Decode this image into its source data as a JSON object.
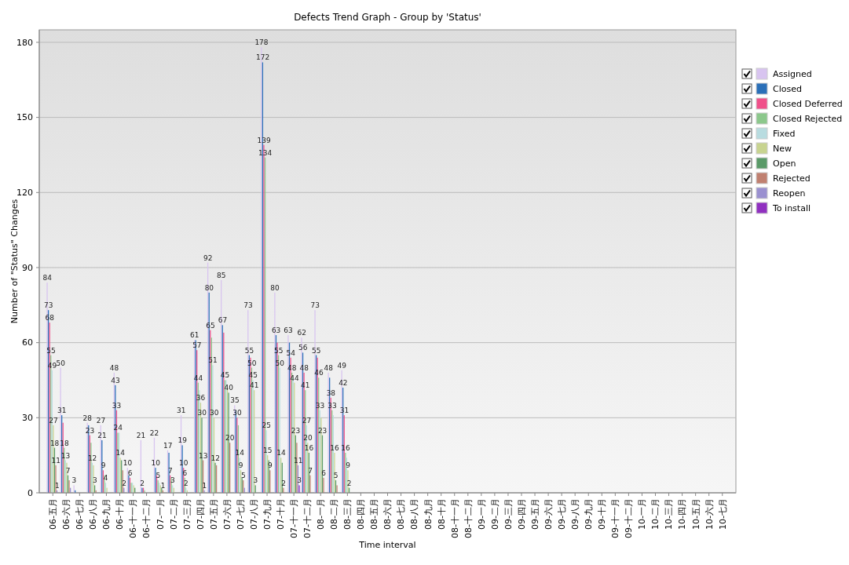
{
  "chart_data": {
    "type": "bar",
    "title": "Defects Trend Graph - Group by 'Status'",
    "xlabel": "Time interval",
    "ylabel": "Number of \"Status\" Changes",
    "categories": [
      "06-五月",
      "06-六月",
      "06-七月",
      "06-八月",
      "06-九月",
      "06-十月",
      "06-十一月",
      "06-十二月",
      "07-一月",
      "07-二月",
      "07-三月",
      "07-四月",
      "07-五月",
      "07-六月",
      "07-七月",
      "07-八月",
      "07-九月",
      "07-十月",
      "07-十一月",
      "07-十二月",
      "08-一月",
      "08-二月",
      "08-三月",
      "08-四月",
      "08-五月",
      "08-六月",
      "08-七月",
      "08-八月",
      "08-九月",
      "08-十月",
      "08-十一月",
      "08-十二月",
      "09-一月",
      "09-二月",
      "09-三月",
      "09-四月",
      "09-五月",
      "09-六月",
      "09-七月",
      "09-八月",
      "09-九月",
      "09-十月",
      "09-十一月",
      "09-十二月",
      "10-一月",
      "10-二月",
      "10-三月",
      "10-四月",
      "10-五月",
      "10-六月",
      "10-七月"
    ],
    "series": [
      {
        "name": "Assigned",
        "color": "#d8c4f0",
        "values": [
          84,
          50,
          3,
          28,
          27,
          48,
          10,
          21,
          22,
          17,
          31,
          61,
          92,
          85,
          35,
          73,
          178,
          80,
          63,
          62,
          73,
          48,
          49,
          null,
          null,
          null,
          null,
          null,
          null,
          null,
          null,
          null,
          null,
          null,
          null,
          null,
          null,
          null,
          null,
          null,
          null,
          null,
          null,
          null,
          null,
          null,
          null,
          null,
          null,
          null,
          null
        ],
        "value_labels": [
          "84",
          "50",
          "3",
          "28",
          "27",
          "48",
          "10",
          "21",
          "22",
          "17",
          "31",
          "61",
          "92",
          "85",
          "35",
          "73",
          "178",
          "80",
          "63",
          "62",
          "73",
          "48",
          "49",
          null,
          null,
          null,
          null,
          null,
          null,
          null,
          null,
          null,
          null,
          null,
          null,
          null,
          null,
          null,
          null,
          null,
          null,
          null,
          null,
          null,
          null,
          null,
          null,
          null,
          null,
          null,
          null
        ]
      },
      {
        "name": "Closed",
        "color": "#2a6fb8",
        "values": [
          73,
          31,
          1,
          27,
          21,
          43,
          7,
          2,
          10,
          16,
          19,
          61,
          80,
          67,
          33,
          55,
          172,
          63,
          60,
          56,
          55,
          46,
          42,
          null,
          null,
          null,
          null,
          null,
          null,
          null,
          null,
          null,
          null,
          null,
          null,
          null,
          null,
          null,
          null,
          null,
          null,
          null,
          null,
          null,
          null,
          null,
          null,
          null,
          null,
          null,
          null
        ],
        "value_labels": [
          "73",
          "31",
          null,
          null,
          "21",
          "43",
          null,
          "2",
          "10",
          null,
          "19",
          null,
          "80",
          "67",
          null,
          "55",
          "172",
          "63",
          null,
          "56",
          "55",
          null,
          "42",
          null,
          null,
          null,
          null,
          null,
          null,
          null,
          null,
          null,
          null,
          null,
          null,
          null,
          null,
          null,
          null,
          null,
          null,
          null,
          null,
          null,
          null,
          null,
          null,
          null,
          null,
          null,
          null
        ]
      },
      {
        "name": "Closed Deferred",
        "color": "#f0508a",
        "values": [
          68,
          28,
          null,
          23,
          9,
          33,
          6,
          2,
          7,
          7,
          10,
          57,
          65,
          64,
          30,
          54,
          139,
          60,
          54,
          48,
          54,
          38,
          31,
          null,
          null,
          null,
          null,
          null,
          null,
          null,
          null,
          null,
          null,
          null,
          null,
          null,
          null,
          null,
          null,
          null,
          null,
          null,
          null,
          null,
          null,
          null,
          null,
          null,
          null,
          null,
          null
        ],
        "value_labels": [
          "68",
          null,
          null,
          "23",
          "9",
          "33",
          "6",
          null,
          null,
          "7",
          "10",
          "57",
          "65",
          null,
          "30",
          null,
          "139",
          null,
          "54",
          "48",
          null,
          "38",
          "31",
          null,
          null,
          null,
          null,
          null,
          null,
          null,
          null,
          null,
          null,
          null,
          null,
          null,
          null,
          null,
          null,
          null,
          null,
          null,
          null,
          null,
          null,
          null,
          null,
          null,
          null,
          null,
          null
        ]
      },
      {
        "name": "Closed Rejected",
        "color": "#8cc88c",
        "values": [
          55,
          18,
          null,
          20,
          7,
          24,
          4,
          1,
          5,
          6,
          6,
          44,
          62,
          45,
          27,
          50,
          134,
          55,
          48,
          41,
          46,
          33,
          16,
          null,
          null,
          null,
          null,
          null,
          null,
          null,
          null,
          null,
          null,
          null,
          null,
          null,
          null,
          null,
          null,
          null,
          null,
          null,
          null,
          null,
          null,
          null,
          null,
          null,
          null,
          null,
          null
        ],
        "value_labels": [
          "55",
          "18",
          null,
          null,
          null,
          "24",
          null,
          null,
          "5",
          null,
          "6",
          "44",
          null,
          "45",
          null,
          "50",
          "134",
          "55",
          "48",
          "41",
          "46",
          "33",
          "16",
          null,
          null,
          null,
          null,
          null,
          null,
          null,
          null,
          null,
          null,
          null,
          null,
          null,
          null,
          null,
          null,
          null,
          null,
          null,
          null,
          null,
          null,
          null,
          null,
          null,
          null,
          null,
          null
        ]
      },
      {
        "name": "Fixed",
        "color": "#b8dce0",
        "values": [
          49,
          13,
          null,
          12,
          4,
          24,
          4,
          null,
          4,
          3,
          2,
          41,
          51,
          45,
          14,
          45,
          25,
          50,
          46,
          27,
          33,
          31,
          14,
          null,
          null,
          null,
          null,
          null,
          null,
          null,
          null,
          null,
          null,
          null,
          null,
          null,
          null,
          null,
          null,
          null,
          null,
          null,
          null,
          null,
          null,
          null,
          null,
          null,
          null,
          null,
          null
        ],
        "value_labels": [
          "49",
          "13",
          null,
          "12",
          "4",
          null,
          null,
          null,
          null,
          "3",
          "2",
          null,
          "51",
          null,
          "14",
          "45",
          "25",
          "50",
          null,
          "27",
          "33",
          null,
          null,
          null,
          null,
          null,
          null,
          null,
          null,
          null,
          null,
          null,
          null,
          null,
          null,
          null,
          null,
          null,
          null,
          null,
          null,
          null,
          null,
          null,
          null,
          null,
          null,
          null,
          null,
          null,
          null
        ]
      },
      {
        "name": "New",
        "color": "#c8d490",
        "values": [
          27,
          12,
          null,
          11,
          2,
          14,
          3,
          null,
          3,
          2,
          1,
          36,
          30,
          42,
          9,
          41,
          15,
          14,
          44,
          20,
          30,
          16,
          9,
          null,
          null,
          null,
          null,
          null,
          null,
          null,
          null,
          null,
          null,
          null,
          null,
          null,
          null,
          null,
          null,
          null,
          null,
          null,
          null,
          null,
          null,
          null,
          null,
          null,
          null,
          null,
          null
        ],
        "value_labels": [
          "27",
          null,
          null,
          null,
          null,
          "14",
          null,
          null,
          null,
          null,
          null,
          "36",
          "30",
          null,
          "9",
          "41",
          "15",
          "14",
          "44",
          "20",
          null,
          "16",
          "9",
          null,
          null,
          null,
          null,
          null,
          null,
          null,
          null,
          null,
          null,
          null,
          null,
          null,
          null,
          null,
          null,
          null,
          null,
          null,
          null,
          null,
          null,
          null,
          null,
          null,
          null,
          null,
          null
        ]
      },
      {
        "name": "Open",
        "color": "#5a9a68",
        "values": [
          18,
          7,
          null,
          3,
          null,
          13,
          2,
          null,
          2,
          null,
          null,
          30,
          12,
          40,
          6,
          3,
          13,
          12,
          23,
          16,
          23,
          5,
          2,
          null,
          null,
          null,
          null,
          null,
          null,
          null,
          null,
          null,
          null,
          null,
          null,
          null,
          null,
          null,
          null,
          null,
          null,
          null,
          null,
          null,
          null,
          null,
          null,
          null,
          null,
          null,
          null
        ],
        "value_labels": [
          "18",
          "7",
          null,
          "3",
          null,
          null,
          null,
          null,
          null,
          null,
          null,
          "30",
          "12",
          "40",
          null,
          "3",
          null,
          null,
          "23",
          "16",
          "23",
          "5",
          "2",
          null,
          null,
          null,
          null,
          null,
          null,
          null,
          null,
          null,
          null,
          null,
          null,
          null,
          null,
          null,
          null,
          null,
          null,
          null,
          null,
          null,
          null,
          null,
          null,
          null,
          null,
          null,
          null
        ]
      },
      {
        "name": "Rejected",
        "color": "#c08070",
        "values": [
          11,
          5,
          null,
          1,
          null,
          9,
          null,
          null,
          1,
          null,
          null,
          13,
          11,
          20,
          5,
          null,
          9,
          2,
          20,
          7,
          6,
          3,
          null,
          null,
          null,
          null,
          null,
          null,
          null,
          null,
          null,
          null,
          null,
          null,
          null,
          null,
          null,
          null,
          null,
          null,
          null,
          null,
          null,
          null,
          null,
          null,
          null,
          null,
          null,
          null,
          null
        ],
        "value_labels": [
          "11",
          null,
          null,
          null,
          null,
          null,
          null,
          null,
          "1",
          null,
          null,
          "13",
          null,
          "20",
          "5",
          null,
          "9",
          "2",
          null,
          "7",
          "6",
          null,
          null,
          null,
          null,
          null,
          null,
          null,
          null,
          null,
          null,
          null,
          null,
          null,
          null,
          null,
          null,
          null,
          null,
          null,
          null,
          null,
          null,
          null,
          null,
          null,
          null,
          null,
          null,
          null,
          null
        ]
      },
      {
        "name": "Reopen",
        "color": "#9a90d0",
        "values": [
          1,
          2,
          null,
          null,
          null,
          2,
          null,
          null,
          null,
          null,
          null,
          1,
          null,
          null,
          2,
          null,
          null,
          null,
          11,
          null,
          null,
          null,
          null,
          null,
          null,
          null,
          null,
          null,
          null,
          null,
          null,
          null,
          null,
          null,
          null,
          null,
          null,
          null,
          null,
          null,
          null,
          null,
          null,
          null,
          null,
          null,
          null,
          null,
          null,
          null,
          null
        ],
        "value_labels": [
          "1",
          null,
          null,
          null,
          null,
          "2",
          null,
          null,
          null,
          null,
          null,
          "1",
          null,
          null,
          null,
          null,
          null,
          null,
          "11",
          null,
          null,
          null,
          null,
          null,
          null,
          null,
          null,
          null,
          null,
          null,
          null,
          null,
          null,
          null,
          null,
          null,
          null,
          null,
          null,
          null,
          null,
          null,
          null,
          null,
          null,
          null,
          null,
          null,
          null,
          null,
          null
        ]
      },
      {
        "name": "To install",
        "color": "#9030c0",
        "values": [
          null,
          null,
          null,
          null,
          null,
          null,
          null,
          null,
          null,
          null,
          null,
          null,
          null,
          null,
          null,
          null,
          null,
          null,
          3,
          null,
          null,
          null,
          null,
          null,
          null,
          null,
          null,
          null,
          null,
          null,
          null,
          null,
          null,
          null,
          null,
          null,
          null,
          null,
          null,
          null,
          null,
          null,
          null,
          null,
          null,
          null,
          null,
          null,
          null,
          null,
          null
        ],
        "value_labels": [
          null,
          null,
          null,
          null,
          null,
          null,
          null,
          null,
          null,
          null,
          null,
          null,
          null,
          null,
          null,
          null,
          null,
          null,
          "3",
          null,
          null,
          null,
          null,
          null,
          null,
          null,
          null,
          null,
          null,
          null,
          null,
          null,
          null,
          null,
          null,
          null,
          null,
          null,
          null,
          null,
          null,
          null,
          null,
          null,
          null,
          null,
          null,
          null,
          null,
          null,
          null
        ]
      }
    ],
    "ylim": [
      0,
      185
    ],
    "yticks": [
      0,
      30,
      60,
      90,
      120,
      150,
      180
    ],
    "grid": "y",
    "legend": "right"
  }
}
